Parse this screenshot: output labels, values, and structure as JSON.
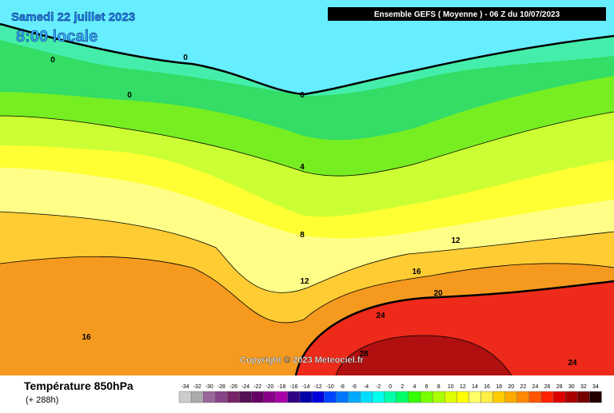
{
  "header": {
    "title": "Samedi 22 juillet 2023",
    "subtitle": "8:00 locale",
    "run": "Ensemble GEFS  ( Moyenne )  -  06 Z du 10/07/2023"
  },
  "map": {
    "contour_labels": [
      0,
      0,
      0,
      0,
      4,
      8,
      12,
      12,
      16,
      16,
      20,
      24,
      24,
      28
    ],
    "copyright": "Copyright © 2023 Meteociel.fr"
  },
  "footer": {
    "title": "Température 850hPa",
    "lead": "(+ 288h)"
  },
  "legend": {
    "labels": [
      -34,
      -32,
      -30,
      -28,
      -26,
      -24,
      -22,
      -20,
      -18,
      -16,
      -14,
      -12,
      -10,
      -8,
      -6,
      -4,
      -2,
      0,
      2,
      4,
      6,
      8,
      10,
      12,
      14,
      16,
      18,
      20,
      22,
      24,
      26,
      28,
      30,
      32,
      34
    ],
    "colors": [
      "#cccccc",
      "#aaaaaa",
      "#996699",
      "#884488",
      "#772266",
      "#551155",
      "#660066",
      "#880088",
      "#aa00aa",
      "#330088",
      "#0000aa",
      "#0000dd",
      "#0044ff",
      "#0077ff",
      "#00aaff",
      "#00ddff",
      "#00ffee",
      "#00ffaa",
      "#00ff66",
      "#33ff00",
      "#77ff00",
      "#aaff00",
      "#ddff00",
      "#ffff00",
      "#ffff66",
      "#ffee44",
      "#ffcc00",
      "#ffaa00",
      "#ff8800",
      "#ff5500",
      "#ff2200",
      "#dd0000",
      "#aa0000",
      "#770000",
      "#220000"
    ]
  }
}
